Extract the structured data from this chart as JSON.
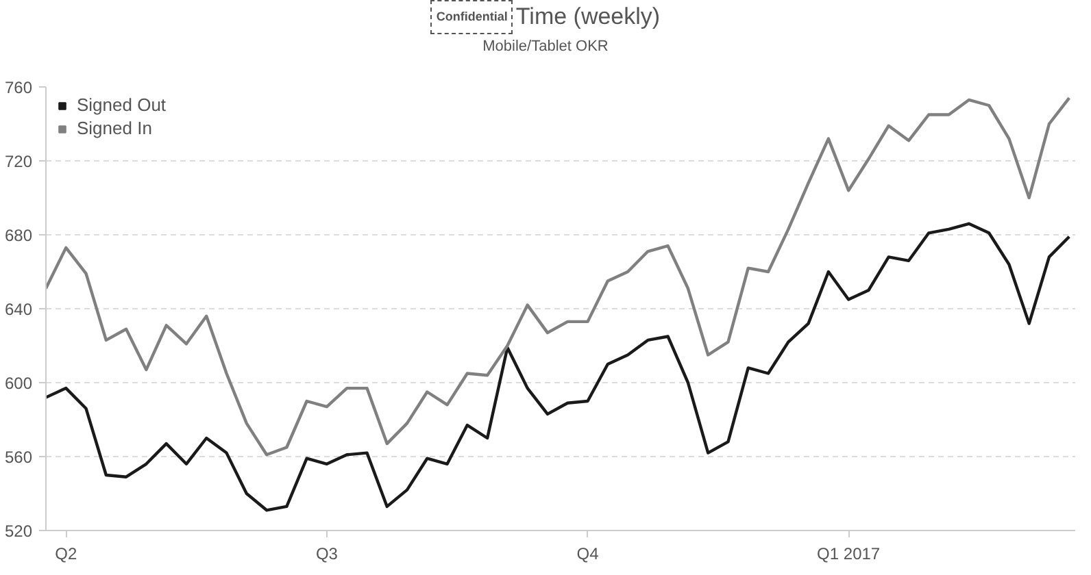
{
  "chart_data": {
    "type": "line",
    "title": "Time (weekly)",
    "subtitle": "Mobile/Tablet OKR",
    "annotations": [
      "Confidential"
    ],
    "categories": [
      null,
      "Q2",
      null,
      null,
      null,
      null,
      null,
      null,
      null,
      null,
      null,
      null,
      null,
      null,
      "Q3",
      null,
      null,
      null,
      null,
      null,
      null,
      null,
      null,
      null,
      null,
      null,
      null,
      "Q4",
      null,
      null,
      null,
      null,
      null,
      null,
      null,
      null,
      null,
      null,
      null,
      null,
      "Q1 2017",
      null,
      null,
      null,
      null,
      null,
      null,
      null,
      null,
      null,
      null,
      null
    ],
    "series": [
      {
        "name": "Signed Out",
        "color": "#1a1a1a",
        "values": [
          592,
          597,
          586,
          550,
          549,
          556,
          567,
          556,
          570,
          562,
          540,
          531,
          533,
          559,
          556,
          561,
          562,
          533,
          542,
          559,
          556,
          577,
          570,
          619,
          597,
          583,
          589,
          590,
          610,
          615,
          623,
          625,
          600,
          562,
          568,
          608,
          605,
          622,
          632,
          660,
          645,
          650,
          668,
          666,
          681,
          683,
          686,
          681,
          664,
          632,
          668,
          679
        ]
      },
      {
        "name": "Signed In",
        "color": "#808080",
        "values": [
          651,
          673,
          659,
          623,
          629,
          607,
          631,
          621,
          636,
          605,
          578,
          561,
          565,
          590,
          587,
          597,
          597,
          567,
          578,
          595,
          588,
          605,
          604,
          620,
          642,
          627,
          633,
          633,
          655,
          660,
          671,
          674,
          651,
          615,
          622,
          662,
          660,
          683,
          708,
          732,
          704,
          721,
          739,
          731,
          745,
          745,
          753,
          750,
          732,
          700,
          740,
          754
        ]
      }
    ],
    "ylim": [
      520,
      760
    ],
    "yticks": [
      520,
      560,
      600,
      640,
      680,
      720,
      760
    ],
    "grid": "y",
    "legend": "top left",
    "marker": "none",
    "line_style": "solid"
  }
}
